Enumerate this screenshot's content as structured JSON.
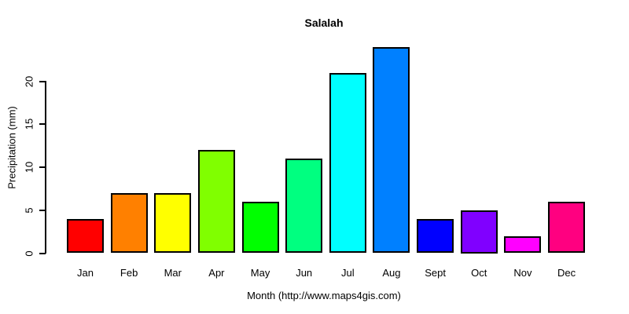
{
  "title": "Salalah",
  "chart_data": {
    "type": "bar",
    "title": "Salalah",
    "xlabel": "Month (http://www.maps4gis.com)",
    "ylabel": "Precipitation (mm)",
    "categories": [
      "Jan",
      "Feb",
      "Mar",
      "Apr",
      "May",
      "Jun",
      "Jul",
      "Aug",
      "Sept",
      "Oct",
      "Nov",
      "Dec"
    ],
    "values": [
      4,
      7,
      7,
      12,
      6,
      11,
      21,
      24,
      4,
      5,
      2,
      6
    ],
    "bar_colors": [
      "#FF0000",
      "#FF8000",
      "#FFFF00",
      "#80FF00",
      "#00FF00",
      "#00FF80",
      "#00FFFF",
      "#0080FF",
      "#0000FF",
      "#8000FF",
      "#FF00FF",
      "#FF0080"
    ],
    "bar_border_color": "#000000",
    "yticks": [
      0,
      5,
      10,
      15,
      20
    ],
    "ylim": [
      0,
      24
    ],
    "grid": false,
    "legend": "none",
    "background_color": "#FFFFFF"
  }
}
